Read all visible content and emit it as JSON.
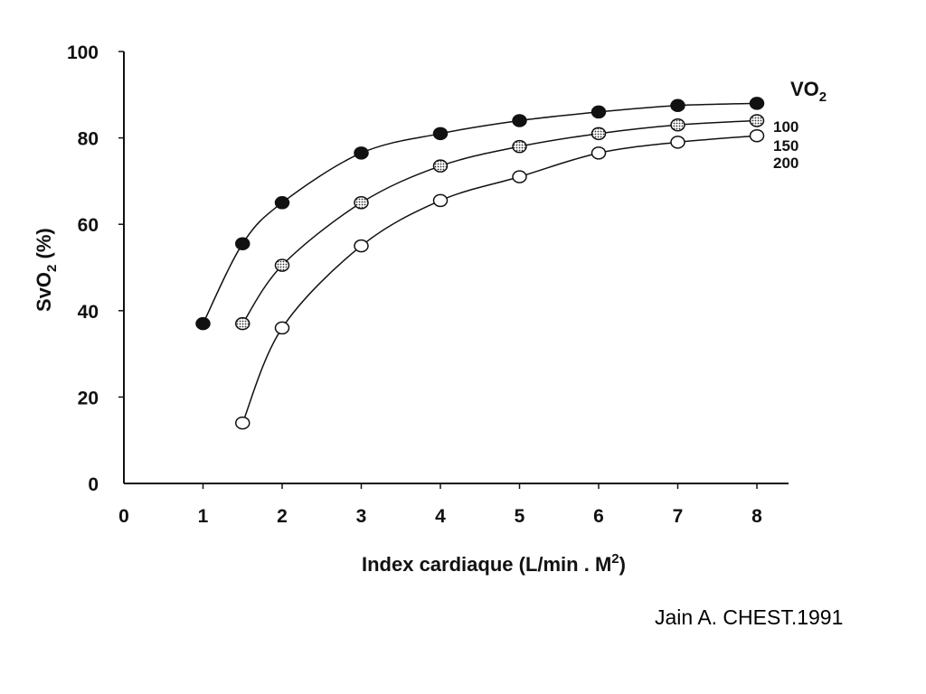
{
  "chart_data": {
    "type": "line",
    "xlabel": "Index cardiaque (L/min . M",
    "xlabel_sup": "2",
    "xlabel_end": ")",
    "ylabel": "SvO",
    "ylabel_sub": "2",
    "ylabel_end": " (%)",
    "xlim": [
      0,
      8.4
    ],
    "ylim": [
      0,
      100
    ],
    "x_ticks": [
      0,
      1,
      2,
      3,
      4,
      5,
      6,
      7,
      8
    ],
    "y_ticks": [
      0,
      20,
      40,
      60,
      80,
      100
    ],
    "grid": false,
    "legend": {
      "title": "VO",
      "title_sub": "2",
      "placement": "right"
    },
    "series": [
      {
        "name": "100",
        "marker": "filled",
        "x": [
          1,
          1.5,
          2,
          3,
          4,
          5,
          6,
          7,
          8
        ],
        "y": [
          37,
          55.5,
          65,
          76.5,
          81,
          84,
          86,
          87.5,
          88
        ]
      },
      {
        "name": "150",
        "marker": "dotted",
        "x": [
          1.5,
          2,
          3,
          4,
          5,
          6,
          7,
          8
        ],
        "y": [
          37,
          50.5,
          65,
          73.5,
          78,
          81,
          83,
          84
        ]
      },
      {
        "name": "200",
        "marker": "open",
        "x": [
          1.5,
          2,
          3,
          4,
          5,
          6,
          7,
          8
        ],
        "y": [
          14,
          36,
          55,
          65.5,
          71,
          76.5,
          79,
          80.5
        ]
      }
    ]
  },
  "citation": "Jain A. CHEST.1991",
  "colors": {
    "ink": "#111111",
    "dotted_fill": "#9a9a9a",
    "open_fill": "#ffffff"
  }
}
